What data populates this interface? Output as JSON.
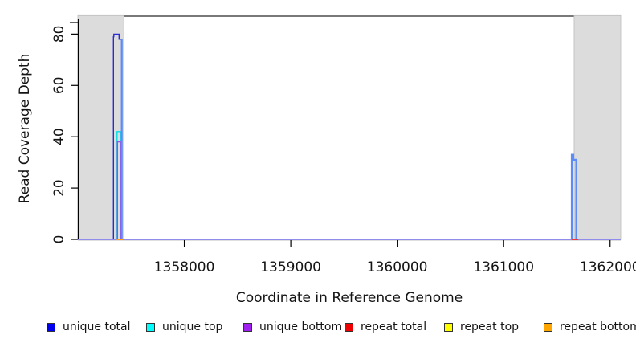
{
  "figure": {
    "type": "coverage-plot"
  },
  "chart_data": {
    "type": "line",
    "title": "",
    "xlabel": "Coordinate in Reference Genome",
    "ylabel": "Read Coverage Depth",
    "xlim": [
      1357000,
      1362100
    ],
    "ylim": [
      0,
      87
    ],
    "x_ticks": [
      "1358000",
      "1359000",
      "1360000",
      "1361000",
      "1362000"
    ],
    "x_tick_values": [
      1358000,
      1359000,
      1360000,
      1361000,
      1362000
    ],
    "y_ticks": [
      "0",
      "20",
      "40",
      "60",
      "80"
    ],
    "y_tick_values": [
      0,
      20,
      40,
      60,
      80
    ],
    "grid": false,
    "legend_position": "bottom",
    "colors": {
      "shaded_region": "#DCDCDC",
      "plot_border": "#4D4D4D",
      "axis": "#000000"
    },
    "shaded_regions": [
      {
        "name": "masked-region-left",
        "x0": 1357000,
        "x1": 1357432
      },
      {
        "name": "masked-region-right",
        "x0": 1361662,
        "x1": 1362100
      }
    ],
    "lines": [
      {
        "series": "zero-coverage baseline",
        "name": "baseline-zero-coverage",
        "color": "#8F8CEC",
        "width": 2,
        "points": [
          [
            1357000,
            0
          ],
          [
            1362100,
            0
          ]
        ]
      },
      {
        "series": "unique top",
        "name": "unique-top-left-peak",
        "color": "#00DCE8",
        "width": 1.4,
        "points": [
          [
            1357368,
            0
          ],
          [
            1357368,
            42
          ],
          [
            1357400,
            42
          ],
          [
            1357400,
            0
          ]
        ]
      },
      {
        "series": "unique bottom",
        "name": "unique-bottom-left-peak",
        "color": "#A44BE0",
        "width": 1.4,
        "points": [
          [
            1357372,
            0
          ],
          [
            1357372,
            38
          ],
          [
            1357404,
            38
          ],
          [
            1357404,
            0
          ]
        ]
      },
      {
        "series": "unique total",
        "name": "unique-total-left-peak",
        "color": "#2B2BD5",
        "width": 1.4,
        "points": [
          [
            1357334,
            0
          ],
          [
            1357334,
            79
          ],
          [
            1357338,
            79
          ],
          [
            1357338,
            80
          ],
          [
            1357387,
            80
          ],
          [
            1357387,
            78
          ],
          [
            1357412,
            78
          ],
          [
            1357412,
            0
          ]
        ]
      },
      {
        "series": "unique total",
        "name": "coverage-right-peak",
        "color": "#5C8CF8",
        "width": 2.2,
        "points": [
          [
            1361640,
            0
          ],
          [
            1361640,
            33
          ],
          [
            1361655,
            33
          ],
          [
            1361655,
            31
          ],
          [
            1361682,
            31
          ],
          [
            1361682,
            0
          ]
        ]
      },
      {
        "series": "unique total",
        "name": "left-peak-right-edge",
        "color": "#5C8CF8",
        "width": 2.2,
        "points": [
          [
            1357413,
            78
          ],
          [
            1357413,
            0
          ]
        ]
      },
      {
        "series": "repeat bottom",
        "name": "repeat-bottom-baseline-mark",
        "color": "#FFA013",
        "width": 2,
        "points": [
          [
            1357366,
            0
          ],
          [
            1357424,
            0
          ]
        ]
      },
      {
        "series": "repeat total",
        "name": "repeat-total-baseline-mark",
        "color": "#F03A3A",
        "width": 2,
        "points": [
          [
            1361638,
            0
          ],
          [
            1361702,
            0
          ]
        ]
      }
    ],
    "legend": [
      {
        "label": "unique total",
        "color": "#0000EE"
      },
      {
        "label": "unique top",
        "color": "#00FFFF"
      },
      {
        "label": "unique bottom",
        "color": "#A020F0"
      },
      {
        "label": "repeat total",
        "color": "#EE0000"
      },
      {
        "label": "repeat top",
        "color": "#FFFF00"
      },
      {
        "label": "repeat bottom",
        "color": "#FFA500"
      }
    ]
  }
}
